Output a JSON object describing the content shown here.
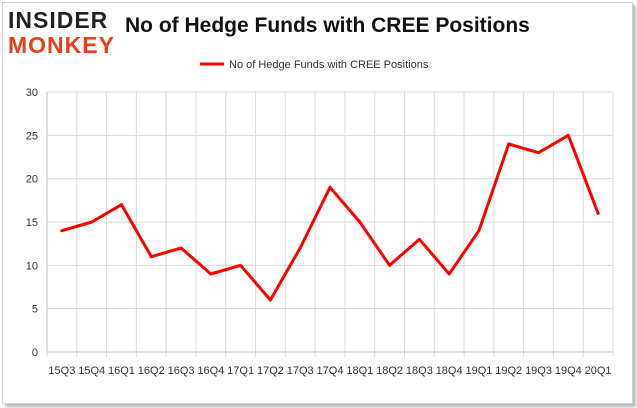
{
  "logo": {
    "line1": "INSIDER",
    "line2": "MONKEY"
  },
  "chart_data": {
    "type": "line",
    "title": "No of Hedge Funds with CREE Positions",
    "categories": [
      "15Q3",
      "15Q4",
      "16Q1",
      "16Q2",
      "16Q3",
      "16Q4",
      "17Q1",
      "17Q2",
      "17Q3",
      "17Q4",
      "18Q1",
      "18Q2",
      "18Q3",
      "18Q4",
      "19Q1",
      "19Q2",
      "19Q3",
      "19Q4",
      "20Q1"
    ],
    "series": [
      {
        "name": "No of Hedge Funds with CREE Positions",
        "values": [
          14,
          15,
          17,
          11,
          12,
          9,
          10,
          6,
          12,
          19,
          15,
          10,
          13,
          9,
          14,
          24,
          23,
          25,
          16
        ]
      }
    ],
    "ylim": [
      0,
      30
    ],
    "yticks": [
      0,
      5,
      10,
      15,
      20,
      25,
      30
    ],
    "xlabel": "",
    "ylabel": "",
    "grid": true,
    "legend": "top-center",
    "line_color": "#ff0000"
  }
}
